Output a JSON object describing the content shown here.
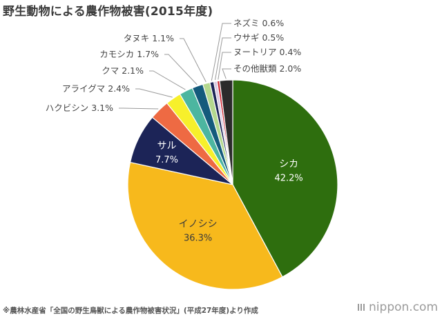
{
  "title": "野生動物による農作物被害(2015年度)",
  "footnote": "※農林水産省「全国の野生鳥獣による農作物被害状況」(平成27年度)より作成",
  "brand": "nippon.com",
  "chart_data": {
    "type": "pie",
    "title": "野生動物による農作物被害(2015年度)",
    "start_angle_deg": 0,
    "direction": "clockwise",
    "slices": [
      {
        "label": "シカ",
        "value": 42.2,
        "display": "42.2%",
        "color": "#2e6e0e",
        "label_style": "inside-light"
      },
      {
        "label": "イノシシ",
        "value": 36.3,
        "display": "36.3%",
        "color": "#f7b91c",
        "label_style": "inside-dark"
      },
      {
        "label": "サル",
        "value": 7.7,
        "display": "7.7%",
        "color": "#1c2457",
        "label_style": "inside-light"
      },
      {
        "label": "ハクビシン",
        "value": 3.1,
        "display": "3.1%",
        "color": "#ee6a43",
        "label_style": "outside"
      },
      {
        "label": "アライグマ",
        "value": 2.4,
        "display": "2.4%",
        "color": "#f7f02b",
        "label_style": "outside"
      },
      {
        "label": "クマ",
        "value": 2.1,
        "display": "2.1%",
        "color": "#4cb6a0",
        "label_style": "outside"
      },
      {
        "label": "カモシカ",
        "value": 1.7,
        "display": "1.7%",
        "color": "#145a7c",
        "label_style": "outside"
      },
      {
        "label": "タヌキ",
        "value": 1.1,
        "display": "1.1%",
        "color": "#b4d88e",
        "label_style": "outside"
      },
      {
        "label": "ネズミ",
        "value": 0.6,
        "display": "0.6%",
        "color": "#1c2457",
        "label_style": "outside"
      },
      {
        "label": "ウサギ",
        "value": 0.5,
        "display": "0.5%",
        "color": "#d9c9e3",
        "label_style": "outside"
      },
      {
        "label": "ヌートリア",
        "value": 0.4,
        "display": "0.4%",
        "color": "#ce2e3a",
        "label_style": "outside"
      },
      {
        "label": "その他獣類",
        "value": 2.0,
        "display": "2.0%",
        "color": "#2b2b2b",
        "label_style": "outside"
      }
    ]
  }
}
